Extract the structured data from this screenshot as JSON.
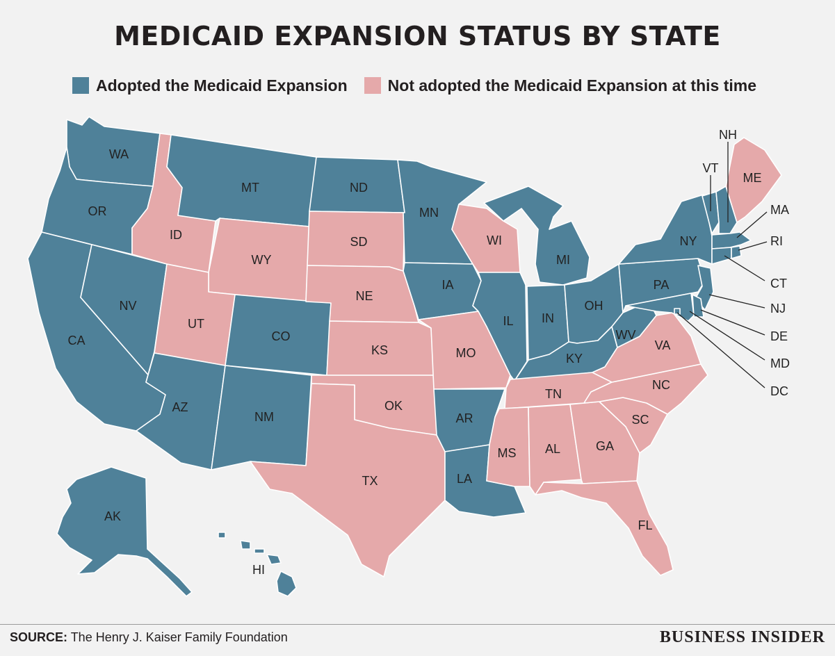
{
  "title": "MEDICAID EXPANSION STATUS BY STATE",
  "legend": {
    "adopted": {
      "label": "Adopted the Medicaid Expansion",
      "color": "#4f8199"
    },
    "not_adopted": {
      "label": "Not adopted the Medicaid Expansion at this time",
      "color": "#e5a9aa"
    }
  },
  "states": {
    "WA": {
      "label": "WA",
      "status": "adopted"
    },
    "OR": {
      "label": "OR",
      "status": "adopted"
    },
    "CA": {
      "label": "CA",
      "status": "adopted"
    },
    "NV": {
      "label": "NV",
      "status": "adopted"
    },
    "ID": {
      "label": "ID",
      "status": "not_adopted"
    },
    "MT": {
      "label": "MT",
      "status": "adopted"
    },
    "WY": {
      "label": "WY",
      "status": "not_adopted"
    },
    "UT": {
      "label": "UT",
      "status": "not_adopted"
    },
    "AZ": {
      "label": "AZ",
      "status": "adopted"
    },
    "CO": {
      "label": "CO",
      "status": "adopted"
    },
    "NM": {
      "label": "NM",
      "status": "adopted"
    },
    "ND": {
      "label": "ND",
      "status": "adopted"
    },
    "SD": {
      "label": "SD",
      "status": "not_adopted"
    },
    "NE": {
      "label": "NE",
      "status": "not_adopted"
    },
    "KS": {
      "label": "KS",
      "status": "not_adopted"
    },
    "OK": {
      "label": "OK",
      "status": "not_adopted"
    },
    "TX": {
      "label": "TX",
      "status": "not_adopted"
    },
    "MN": {
      "label": "MN",
      "status": "adopted"
    },
    "IA": {
      "label": "IA",
      "status": "adopted"
    },
    "MO": {
      "label": "MO",
      "status": "not_adopted"
    },
    "AR": {
      "label": "AR",
      "status": "adopted"
    },
    "LA": {
      "label": "LA",
      "status": "adopted"
    },
    "WI": {
      "label": "WI",
      "status": "not_adopted"
    },
    "IL": {
      "label": "IL",
      "status": "adopted"
    },
    "MI": {
      "label": "MI",
      "status": "adopted"
    },
    "IN": {
      "label": "IN",
      "status": "adopted"
    },
    "OH": {
      "label": "OH",
      "status": "adopted"
    },
    "KY": {
      "label": "KY",
      "status": "adopted"
    },
    "TN": {
      "label": "TN",
      "status": "not_adopted"
    },
    "MS": {
      "label": "MS",
      "status": "not_adopted"
    },
    "AL": {
      "label": "AL",
      "status": "not_adopted"
    },
    "GA": {
      "label": "GA",
      "status": "not_adopted"
    },
    "FL": {
      "label": "FL",
      "status": "not_adopted"
    },
    "SC": {
      "label": "SC",
      "status": "not_adopted"
    },
    "NC": {
      "label": "NC",
      "status": "not_adopted"
    },
    "VA": {
      "label": "VA",
      "status": "not_adopted"
    },
    "WV": {
      "label": "WV",
      "status": "adopted"
    },
    "PA": {
      "label": "PA",
      "status": "adopted"
    },
    "NY": {
      "label": "NY",
      "status": "adopted"
    },
    "VT": {
      "label": "VT",
      "status": "adopted"
    },
    "NH": {
      "label": "NH",
      "status": "adopted"
    },
    "ME": {
      "label": "ME",
      "status": "not_adopted"
    },
    "MA": {
      "label": "MA",
      "status": "adopted"
    },
    "RI": {
      "label": "RI",
      "status": "adopted"
    },
    "CT": {
      "label": "CT",
      "status": "adopted"
    },
    "NJ": {
      "label": "NJ",
      "status": "adopted"
    },
    "DE": {
      "label": "DE",
      "status": "adopted"
    },
    "MD": {
      "label": "MD",
      "status": "adopted"
    },
    "DC": {
      "label": "DC",
      "status": "adopted"
    },
    "AK": {
      "label": "AK",
      "status": "adopted"
    },
    "HI": {
      "label": "HI",
      "status": "adopted"
    }
  },
  "footer": {
    "source_label": "SOURCE:",
    "source_text": " The Henry J. Kaiser Family Foundation",
    "brand": "BUSINESS INSIDER"
  }
}
